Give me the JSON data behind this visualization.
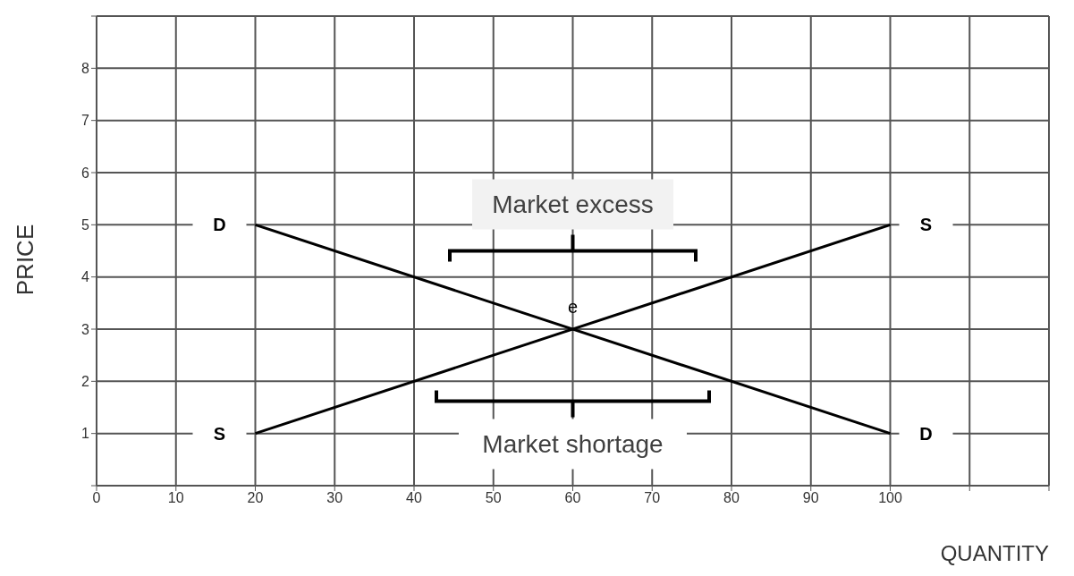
{
  "chart_data": {
    "type": "line",
    "xlabel": "QUANTITY",
    "ylabel": "PRICE",
    "x": [
      20,
      100
    ],
    "series": [
      {
        "name": "D",
        "color": "#000000",
        "values": [
          5,
          1
        ]
      },
      {
        "name": "S",
        "color": "#000000",
        "values": [
          1,
          5
        ]
      }
    ],
    "xlim": [
      0,
      120
    ],
    "xticks": [
      0,
      10,
      20,
      30,
      40,
      50,
      60,
      70,
      80,
      90,
      100,
      {
        "value": 110,
        "label": null
      },
      {
        "value": 120,
        "label": null
      }
    ],
    "ylim": [
      0,
      9
    ],
    "yticks": [
      {
        "value": 0,
        "label": null
      },
      1,
      2,
      3,
      4,
      5,
      6,
      7,
      8,
      {
        "value": 9,
        "label": null
      }
    ],
    "annotations": [
      "Market excess",
      {
        "text": "e",
        "x": 60,
        "y": 3
      },
      "Market shortage"
    ],
    "grid": true,
    "legend": false,
    "marker": "none",
    "line_style": "solid"
  }
}
